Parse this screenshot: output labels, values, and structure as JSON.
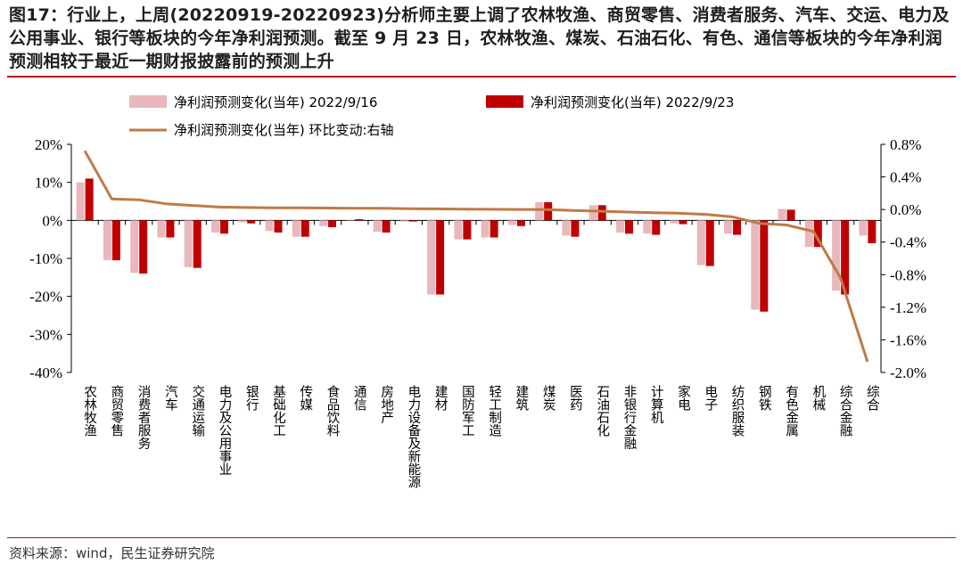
{
  "header": {
    "title": "图17：行业上，上周(20220919-20220923)分析师主要上调了农林牧渔、商贸零售、消费者服务、汽车、交运、电力及公用事业、银行等板块的今年净利润预测。截至 9 月 23 日，农林牧渔、煤炭、石油石化、有色、通信等板块的今年净利润预测相较于最近一期财报披露前的预测上升"
  },
  "footer": {
    "source": "资料来源：wind，民生证券研究院"
  },
  "colors": {
    "series_0916": "#e8b8bc",
    "series_0923": "#c00000",
    "line": "#c07a45",
    "accent": "#b5121b"
  },
  "chart_data": {
    "type": "bar",
    "categories": [
      "农林牧渔",
      "商贸零售",
      "消费者服务",
      "汽车",
      "交通运输",
      "电力及公用事业",
      "银行",
      "基础化工",
      "传媒",
      "食品饮料",
      "通信",
      "房地产",
      "电力设备及新能源",
      "建材",
      "国防军工",
      "轻工制造",
      "建筑",
      "煤炭",
      "医药",
      "石油石化",
      "非银行金融",
      "计算机",
      "家电",
      "电子",
      "纺织服装",
      "钢铁",
      "有色金属",
      "机械",
      "综合金融",
      "综合"
    ],
    "series": [
      {
        "name": "净利润预测变化(当年) 2022/9/16",
        "axis": "left",
        "kind": "bar",
        "values": [
          10,
          -10.5,
          -13.8,
          -4.5,
          -12.3,
          -3.2,
          -0.5,
          -2.8,
          -4.3,
          -1.5,
          0.2,
          -3.0,
          -0.3,
          -19.5,
          -5.0,
          -4.5,
          -1.2,
          4.8,
          -4.0,
          4.0,
          -3.2,
          -3.5,
          -0.8,
          -11.8,
          -3.5,
          -23.5,
          3.0,
          -7.0,
          -18.5,
          -4.0
        ]
      },
      {
        "name": "净利润预测变化(当年) 2022/9/23",
        "axis": "left",
        "kind": "bar",
        "values": [
          11,
          -10.5,
          -14.0,
          -4.5,
          -12.5,
          -3.5,
          -0.8,
          -3.2,
          -4.3,
          -1.8,
          0.3,
          -3.2,
          -0.3,
          -19.5,
          -5.0,
          -4.5,
          -1.5,
          4.8,
          -4.3,
          4.0,
          -3.5,
          -3.8,
          -1.0,
          -12.0,
          -3.8,
          -24.0,
          2.8,
          -7.0,
          -19.5,
          -6.0
        ]
      },
      {
        "name": "净利润预测变化(当年) 环比变动:右轴",
        "axis": "right",
        "kind": "line",
        "values": [
          0.72,
          0.13,
          0.12,
          0.07,
          0.05,
          0.03,
          0.025,
          0.02,
          0.02,
          0.018,
          0.015,
          0.015,
          0.01,
          0.008,
          0.005,
          0.003,
          0.0,
          0.0,
          -0.01,
          -0.02,
          -0.03,
          -0.04,
          -0.045,
          -0.06,
          -0.09,
          -0.17,
          -0.19,
          -0.27,
          -0.84,
          -1.87
        ]
      }
    ],
    "y_left": {
      "min": -40,
      "max": 20,
      "ticks": [
        20,
        10,
        0,
        -10,
        -20,
        -30,
        -40
      ],
      "tick_labels": [
        "20%",
        "10%",
        "0%",
        "-10%",
        "-20%",
        "-30%",
        "-40%"
      ]
    },
    "y_right": {
      "min": -2.0,
      "max": 0.8,
      "ticks": [
        0.8,
        0.4,
        0.0,
        -0.4,
        -0.8,
        -1.2,
        -1.6,
        -2.0
      ],
      "tick_labels": [
        "0.8%",
        "0.4%",
        "0.0%",
        "-0.4%",
        "-0.8%",
        "-1.2%",
        "-1.6%",
        "-2.0%"
      ]
    },
    "legend": {
      "placement": "top-left",
      "items": [
        "净利润预测变化(当年) 2022/9/16",
        "净利润预测变化(当年) 2022/9/23",
        "净利润预测变化(当年) 环比变动:右轴"
      ]
    },
    "grid": false
  }
}
